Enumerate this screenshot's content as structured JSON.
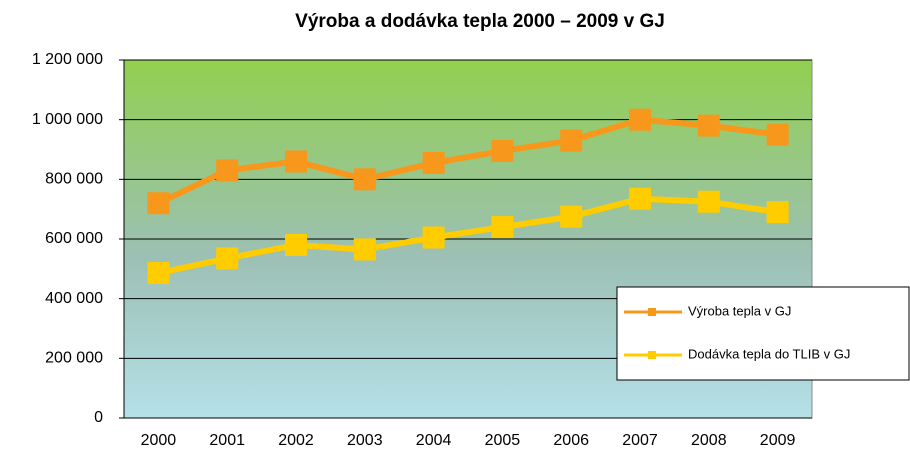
{
  "chart_data": {
    "type": "line",
    "title": "Výroba a dodávka tepla 2000 – 2009 v GJ",
    "categories": [
      "2000",
      "2001",
      "2002",
      "2003",
      "2004",
      "2005",
      "2006",
      "2007",
      "2008",
      "2009"
    ],
    "series": [
      {
        "name": "Výroba tepla v GJ",
        "color": "#f7981d",
        "values": [
          720000,
          830000,
          860000,
          800000,
          855000,
          895000,
          930000,
          1000000,
          980000,
          950000
        ]
      },
      {
        "name": "Dodávka tepla do TLIB v GJ",
        "color": "#ffcc00",
        "values": [
          486000,
          535000,
          580000,
          565000,
          605000,
          640000,
          675000,
          735000,
          725000,
          690000
        ]
      }
    ],
    "ylim": [
      0,
      1200000
    ],
    "yticks": [
      0,
      {
        "value": 200000,
        "label": "200 000"
      },
      {
        "value": 400000,
        "label": "400 000"
      },
      {
        "value": 600000,
        "label": "600 000"
      },
      {
        "value": 800000,
        "label": "800 000"
      },
      {
        "value": 1000000,
        "label": "1 000 000"
      },
      {
        "value": 1200000,
        "label": "1 200 000"
      }
    ],
    "grid": true,
    "legend": "right"
  }
}
